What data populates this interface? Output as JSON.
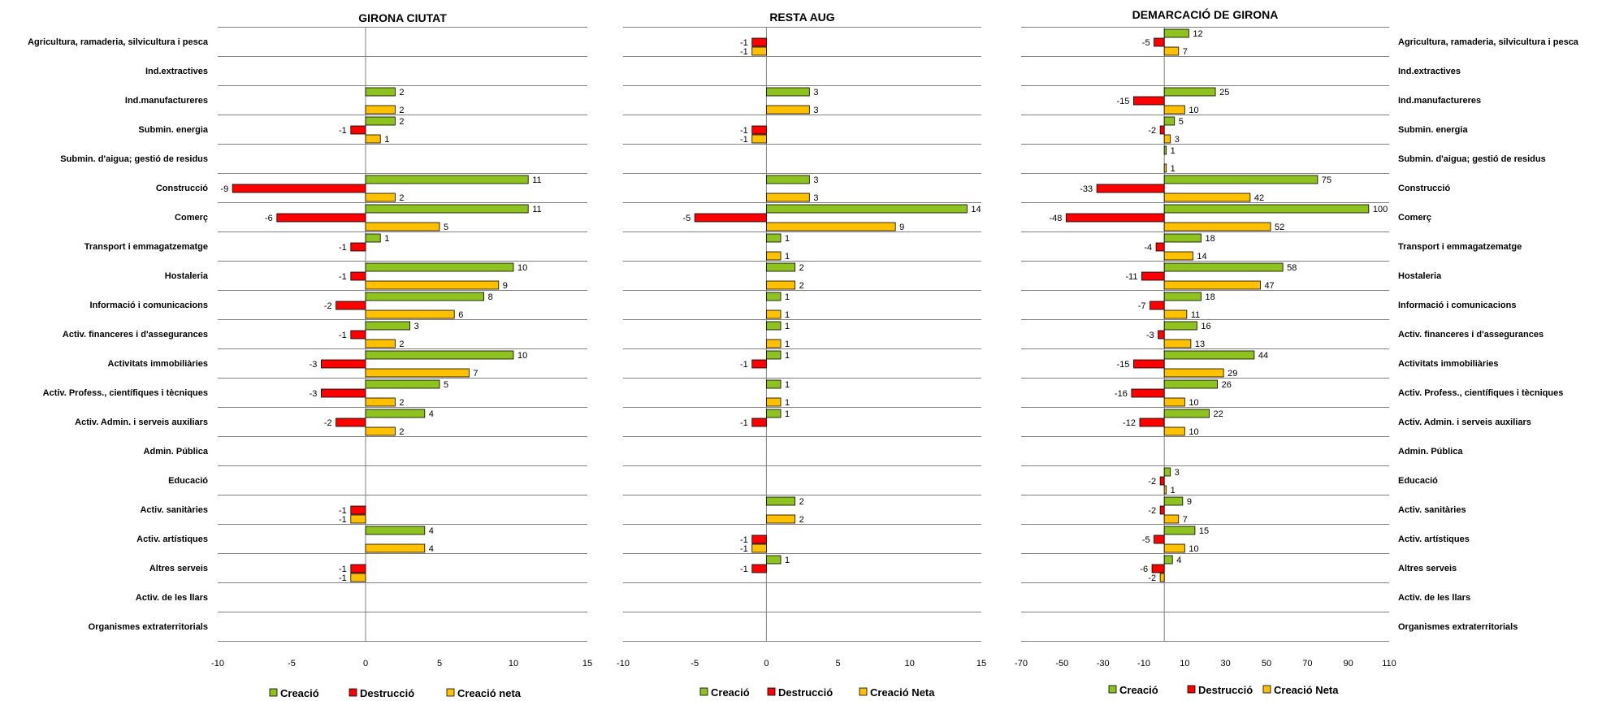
{
  "categories": [
    "Agricultura, ramaderia, silvicultura i pesca",
    "Ind.extractives",
    "Ind.manufactureres",
    "Submin. energia",
    "Submin. d'aigua; gestió de residus",
    "Construcció",
    "Comerç",
    "Transport i emmagatzematge",
    "Hostaleria",
    "Informació i comunicacions",
    "Activ. financeres i d'assegurances",
    "Activitats immobiliàries",
    "Activ. Profess., científiques i tècniques",
    "Activ. Admin. i serveis auxiliars",
    "Admin. Pública",
    "Educació",
    "Activ. sanitàries",
    "Activ. artístiques",
    "Altres serveis",
    "Activ. de les llars",
    "Organismes extraterritorials"
  ],
  "colors": {
    "creacio": "#8dc21f",
    "destruccio": "#ff0000",
    "creacio_neta": "#ffc000",
    "gridline": "#808080"
  },
  "chart_data": [
    {
      "type": "bar",
      "orientation": "horizontal",
      "title": "GIRONA CIUTAT",
      "xlim": [
        -10,
        15
      ],
      "xticks": [
        -10,
        -5,
        0,
        5,
        10,
        15
      ],
      "label_side": "left",
      "series": [
        {
          "name": "Creació",
          "values": [
            null,
            null,
            2,
            2,
            null,
            11,
            11,
            1,
            10,
            8,
            3,
            10,
            5,
            4,
            null,
            null,
            null,
            4,
            null,
            null,
            null
          ]
        },
        {
          "name": "Destrucció",
          "values": [
            null,
            null,
            null,
            -1,
            null,
            -9,
            -6,
            -1,
            -1,
            -2,
            -1,
            -3,
            -3,
            -2,
            null,
            null,
            -1,
            null,
            -1,
            null,
            null
          ]
        },
        {
          "name": "Creació neta",
          "values": [
            null,
            null,
            2,
            1,
            null,
            2,
            5,
            null,
            9,
            6,
            2,
            7,
            2,
            2,
            null,
            null,
            -1,
            4,
            -1,
            null,
            null
          ]
        }
      ]
    },
    {
      "type": "bar",
      "orientation": "horizontal",
      "title": "RESTA AUG",
      "xlim": [
        -10,
        15
      ],
      "xticks": [
        -10,
        -5,
        0,
        5,
        10,
        15
      ],
      "label_side": "none",
      "series": [
        {
          "name": "Creació",
          "values": [
            null,
            null,
            3,
            null,
            null,
            3,
            14,
            1,
            2,
            1,
            1,
            1,
            1,
            1,
            null,
            null,
            2,
            null,
            1,
            null,
            null
          ]
        },
        {
          "name": "Destrucció",
          "values": [
            -1,
            null,
            null,
            -1,
            null,
            null,
            -5,
            null,
            null,
            null,
            null,
            -1,
            null,
            -1,
            null,
            null,
            null,
            -1,
            -1,
            null,
            null
          ]
        },
        {
          "name": "Creació Neta",
          "values": [
            -1,
            null,
            3,
            -1,
            null,
            3,
            9,
            1,
            2,
            1,
            1,
            null,
            1,
            null,
            null,
            null,
            2,
            -1,
            null,
            null,
            null
          ]
        }
      ]
    },
    {
      "type": "bar",
      "orientation": "horizontal",
      "title": "DEMARCACIÓ DE GIRONA",
      "xlim": [
        -70,
        110
      ],
      "xticks": [
        -70,
        -50,
        -30,
        -10,
        10,
        30,
        50,
        70,
        90,
        110
      ],
      "label_side": "right",
      "series": [
        {
          "name": "Creació",
          "values": [
            12,
            null,
            25,
            5,
            1,
            75,
            100,
            18,
            58,
            18,
            16,
            44,
            26,
            22,
            null,
            3,
            9,
            15,
            4,
            null,
            null
          ]
        },
        {
          "name": "Destrucció",
          "values": [
            -5,
            null,
            -15,
            -2,
            null,
            -33,
            -48,
            -4,
            -11,
            -7,
            -3,
            -15,
            -16,
            -12,
            null,
            -2,
            -2,
            -5,
            -6,
            null,
            null
          ]
        },
        {
          "name": "Creació Neta",
          "values": [
            7,
            null,
            10,
            3,
            1,
            42,
            52,
            14,
            47,
            11,
            13,
            29,
            10,
            10,
            null,
            1,
            7,
            10,
            -2,
            null,
            null
          ]
        }
      ]
    }
  ]
}
